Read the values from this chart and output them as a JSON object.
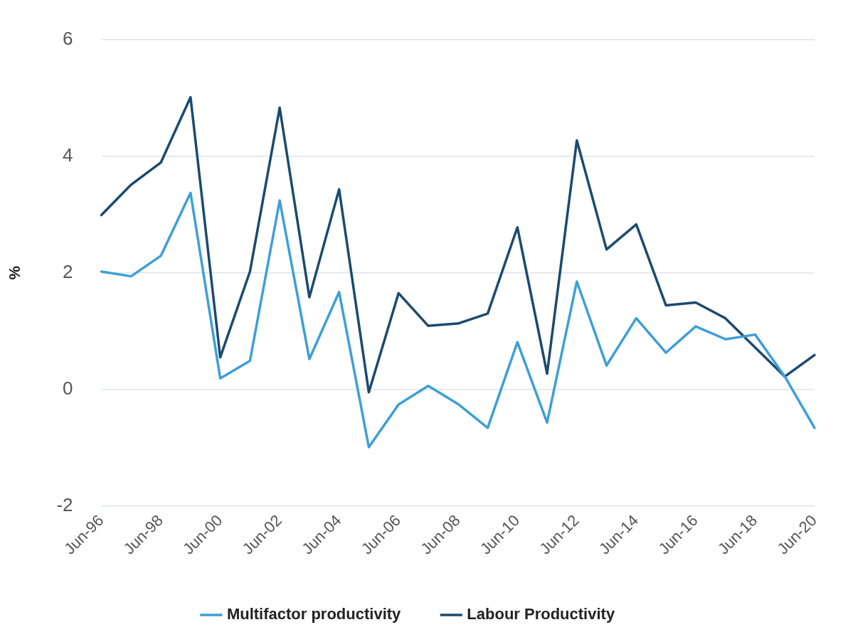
{
  "chart_data": {
    "type": "line",
    "ylabel": "%",
    "categories": [
      "Jun-96",
      null,
      "Jun-98",
      null,
      "Jun-00",
      null,
      "Jun-02",
      null,
      "Jun-04",
      null,
      "Jun-06",
      null,
      "Jun-08",
      null,
      "Jun-10",
      null,
      "Jun-12",
      null,
      "Jun-14",
      null,
      "Jun-16",
      null,
      "Jun-18",
      null,
      "Jun-20"
    ],
    "series": [
      {
        "name": "Multifactor productivity",
        "color": "#3d9fd6",
        "values": [
          2.02,
          1.94,
          2.29,
          3.37,
          0.19,
          0.49,
          3.24,
          0.52,
          1.67,
          -0.99,
          -0.26,
          0.06,
          -0.25,
          -0.66,
          0.81,
          -0.57,
          1.85,
          0.41,
          1.22,
          0.63,
          1.08,
          0.86,
          0.94,
          0.22,
          -0.66
        ]
      },
      {
        "name": "Labour Productivity",
        "color": "#1b4a6f",
        "values": [
          2.99,
          3.51,
          3.89,
          5.01,
          0.55,
          2.02,
          4.83,
          1.58,
          3.43,
          -0.05,
          1.65,
          1.09,
          1.13,
          1.3,
          2.78,
          0.27,
          4.27,
          2.4,
          2.83,
          1.44,
          1.49,
          1.22,
          0.72,
          0.22,
          0.59
        ]
      }
    ],
    "ylim": [
      -2,
      6
    ],
    "yticks": [
      -2,
      0,
      2,
      4,
      6
    ],
    "grid": "y",
    "legend": "bottom",
    "marker": "none",
    "line_style": "solid"
  }
}
